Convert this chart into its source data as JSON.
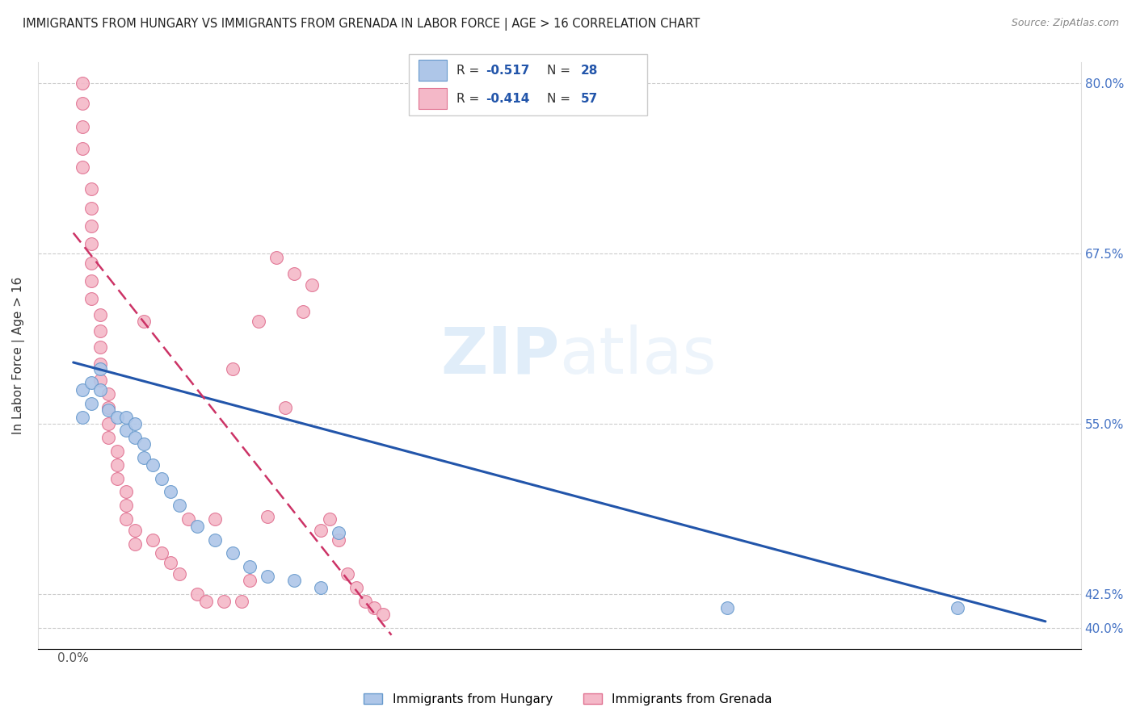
{
  "title": "IMMIGRANTS FROM HUNGARY VS IMMIGRANTS FROM GRENADA IN LABOR FORCE | AGE > 16 CORRELATION CHART",
  "source": "Source: ZipAtlas.com",
  "ylabel": "In Labor Force | Age > 16",
  "watermark": "ZIPatlas",
  "hungary_color": "#aec6e8",
  "grenada_color": "#f4b8c8",
  "hungary_edge_color": "#6699cc",
  "grenada_edge_color": "#e07090",
  "hungary_line_color": "#2255aa",
  "grenada_line_color": "#cc3366",
  "ytick_vals": [
    0.4,
    0.425,
    0.55,
    0.675,
    0.8
  ],
  "ytick_labels": [
    "40.0%",
    "42.5%",
    "55.0%",
    "67.5%",
    "80.0%"
  ],
  "xlim": [
    -0.004,
    0.114
  ],
  "ylim": [
    0.385,
    0.815
  ],
  "hungary_line_x0": 0.0,
  "hungary_line_y0": 0.595,
  "hungary_line_x1": 0.11,
  "hungary_line_y1": 0.405,
  "grenada_line_x0": 0.0,
  "grenada_line_y0": 0.69,
  "grenada_line_x1": 0.036,
  "grenada_line_y1": 0.395,
  "hungary_x": [
    0.001,
    0.001,
    0.002,
    0.002,
    0.003,
    0.003,
    0.004,
    0.005,
    0.006,
    0.006,
    0.007,
    0.007,
    0.008,
    0.008,
    0.009,
    0.01,
    0.011,
    0.012,
    0.014,
    0.016,
    0.018,
    0.02,
    0.022,
    0.025,
    0.028,
    0.03,
    0.074,
    0.1
  ],
  "hungary_y": [
    0.575,
    0.555,
    0.58,
    0.565,
    0.59,
    0.575,
    0.56,
    0.555,
    0.555,
    0.545,
    0.55,
    0.54,
    0.535,
    0.525,
    0.52,
    0.51,
    0.5,
    0.49,
    0.475,
    0.465,
    0.455,
    0.445,
    0.438,
    0.435,
    0.43,
    0.47,
    0.415,
    0.415
  ],
  "grenada_x": [
    0.001,
    0.001,
    0.001,
    0.001,
    0.001,
    0.002,
    0.002,
    0.002,
    0.002,
    0.002,
    0.002,
    0.002,
    0.003,
    0.003,
    0.003,
    0.003,
    0.003,
    0.004,
    0.004,
    0.004,
    0.004,
    0.005,
    0.005,
    0.005,
    0.006,
    0.006,
    0.006,
    0.007,
    0.007,
    0.008,
    0.009,
    0.01,
    0.011,
    0.012,
    0.013,
    0.014,
    0.015,
    0.016,
    0.017,
    0.018,
    0.019,
    0.02,
    0.021,
    0.022,
    0.023,
    0.024,
    0.025,
    0.026,
    0.027,
    0.028,
    0.029,
    0.03,
    0.031,
    0.032,
    0.033,
    0.034,
    0.035
  ],
  "grenada_y": [
    0.8,
    0.785,
    0.768,
    0.752,
    0.738,
    0.722,
    0.708,
    0.695,
    0.682,
    0.668,
    0.655,
    0.642,
    0.63,
    0.618,
    0.606,
    0.594,
    0.582,
    0.572,
    0.562,
    0.55,
    0.54,
    0.53,
    0.52,
    0.51,
    0.5,
    0.49,
    0.48,
    0.472,
    0.462,
    0.625,
    0.465,
    0.455,
    0.448,
    0.44,
    0.48,
    0.425,
    0.42,
    0.48,
    0.42,
    0.59,
    0.42,
    0.435,
    0.625,
    0.482,
    0.672,
    0.562,
    0.66,
    0.632,
    0.652,
    0.472,
    0.48,
    0.465,
    0.44,
    0.43,
    0.42,
    0.415,
    0.41
  ]
}
